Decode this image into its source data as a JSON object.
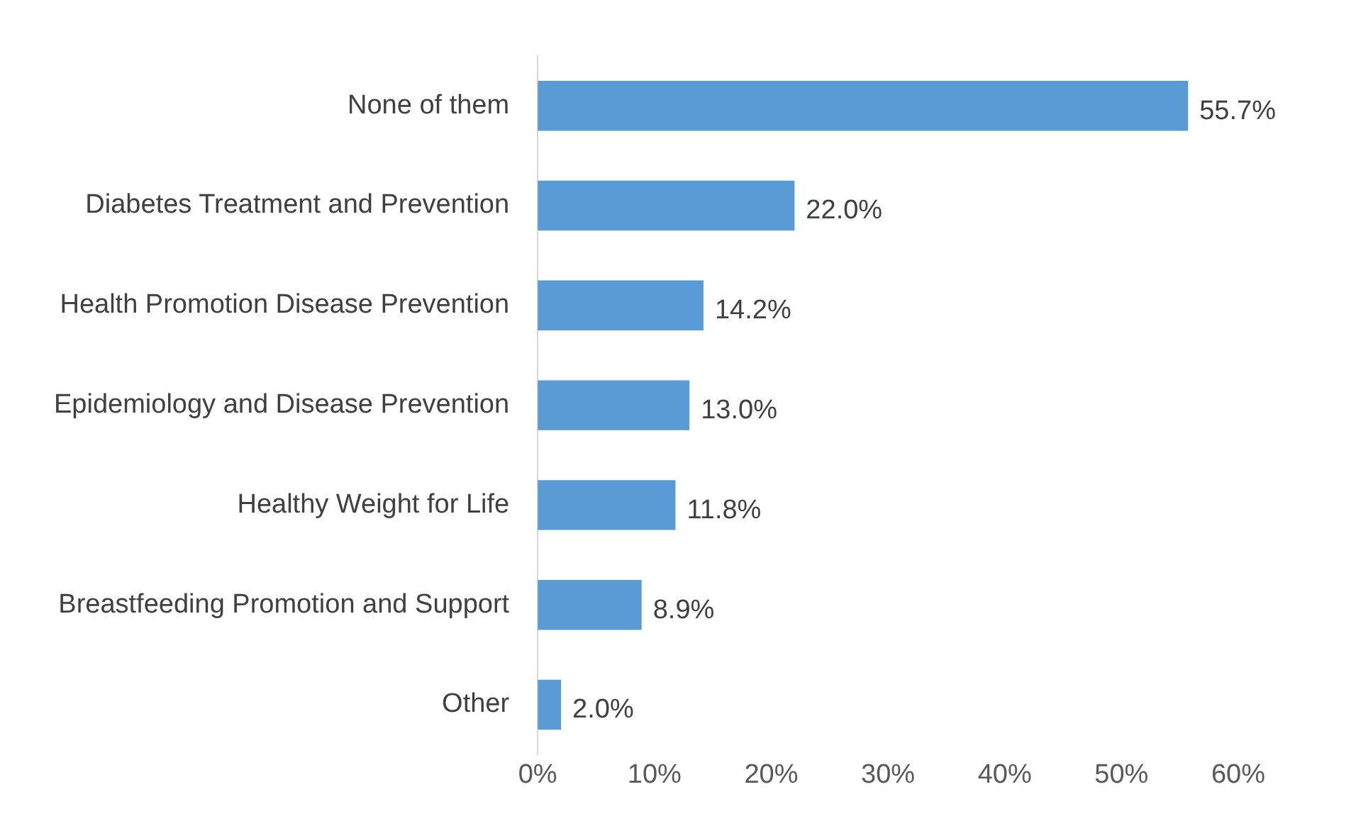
{
  "chart_data": {
    "type": "bar",
    "orientation": "horizontal",
    "categories": [
      "None of them",
      "Diabetes Treatment and Prevention",
      "Health Promotion Disease Prevention",
      "Epidemiology and Disease Prevention",
      "Healthy Weight for Life",
      "Breastfeeding Promotion and Support",
      "Other"
    ],
    "values": [
      55.7,
      22.0,
      14.2,
      13.0,
      11.8,
      8.9,
      2.0
    ],
    "value_labels": [
      "55.7%",
      "22.0%",
      "14.2%",
      "13.0%",
      "11.8%",
      "8.9%",
      "2.0%"
    ],
    "color": "#5b9bd5",
    "xlim": [
      0,
      60
    ],
    "xticks": [
      {
        "value": 0,
        "label": "0%"
      },
      {
        "value": 10,
        "label": "10%"
      },
      {
        "value": 20,
        "label": "20%"
      },
      {
        "value": 30,
        "label": "30%"
      },
      {
        "value": 40,
        "label": "40%"
      },
      {
        "value": 50,
        "label": "50%"
      },
      {
        "value": 60,
        "label": "60%"
      }
    ],
    "grid": false,
    "legend": false
  }
}
